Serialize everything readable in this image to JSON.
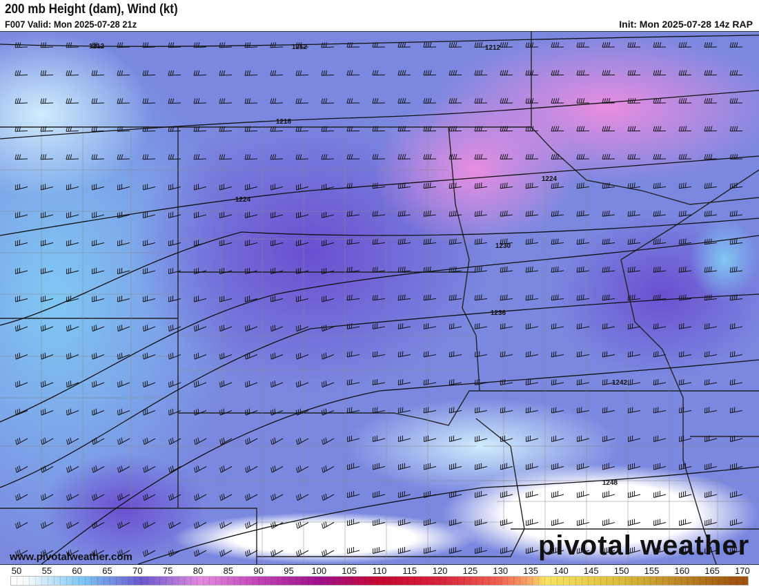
{
  "header": {
    "title": "200 mb Height (dam), Wind (kt)",
    "valid": "F007 Valid: Mon 2025-07-28 21z",
    "init": "Init: Mon 2025-07-28 14z RAP"
  },
  "map": {
    "contour_labels": [
      "1212",
      "1212",
      "1212",
      "1218",
      "1224",
      "1224",
      "1230",
      "1236",
      "1242",
      "1248"
    ],
    "watermark_url": "www.pivotalweather.com",
    "logo": "pivotal weather"
  },
  "colorbar": {
    "ticks": [
      "50",
      "55",
      "60",
      "65",
      "70",
      "75",
      "80",
      "85",
      "90",
      "95",
      "100",
      "105",
      "110",
      "115",
      "120",
      "125",
      "130",
      "135",
      "140",
      "145",
      "150",
      "155",
      "160",
      "165",
      "170"
    ],
    "colors": {
      "50": "#ffffff",
      "60": "#7cc6f4",
      "70": "#6a58d0",
      "80": "#e48ae0",
      "90": "#c040b4",
      "100": "#a0108c",
      "110": "#c80632",
      "120": "#d8223c",
      "130": "#f06050",
      "135": "#f8a462",
      "138": "#f8e462",
      "150": "#dcbe3c",
      "170": "#a05410"
    }
  }
}
